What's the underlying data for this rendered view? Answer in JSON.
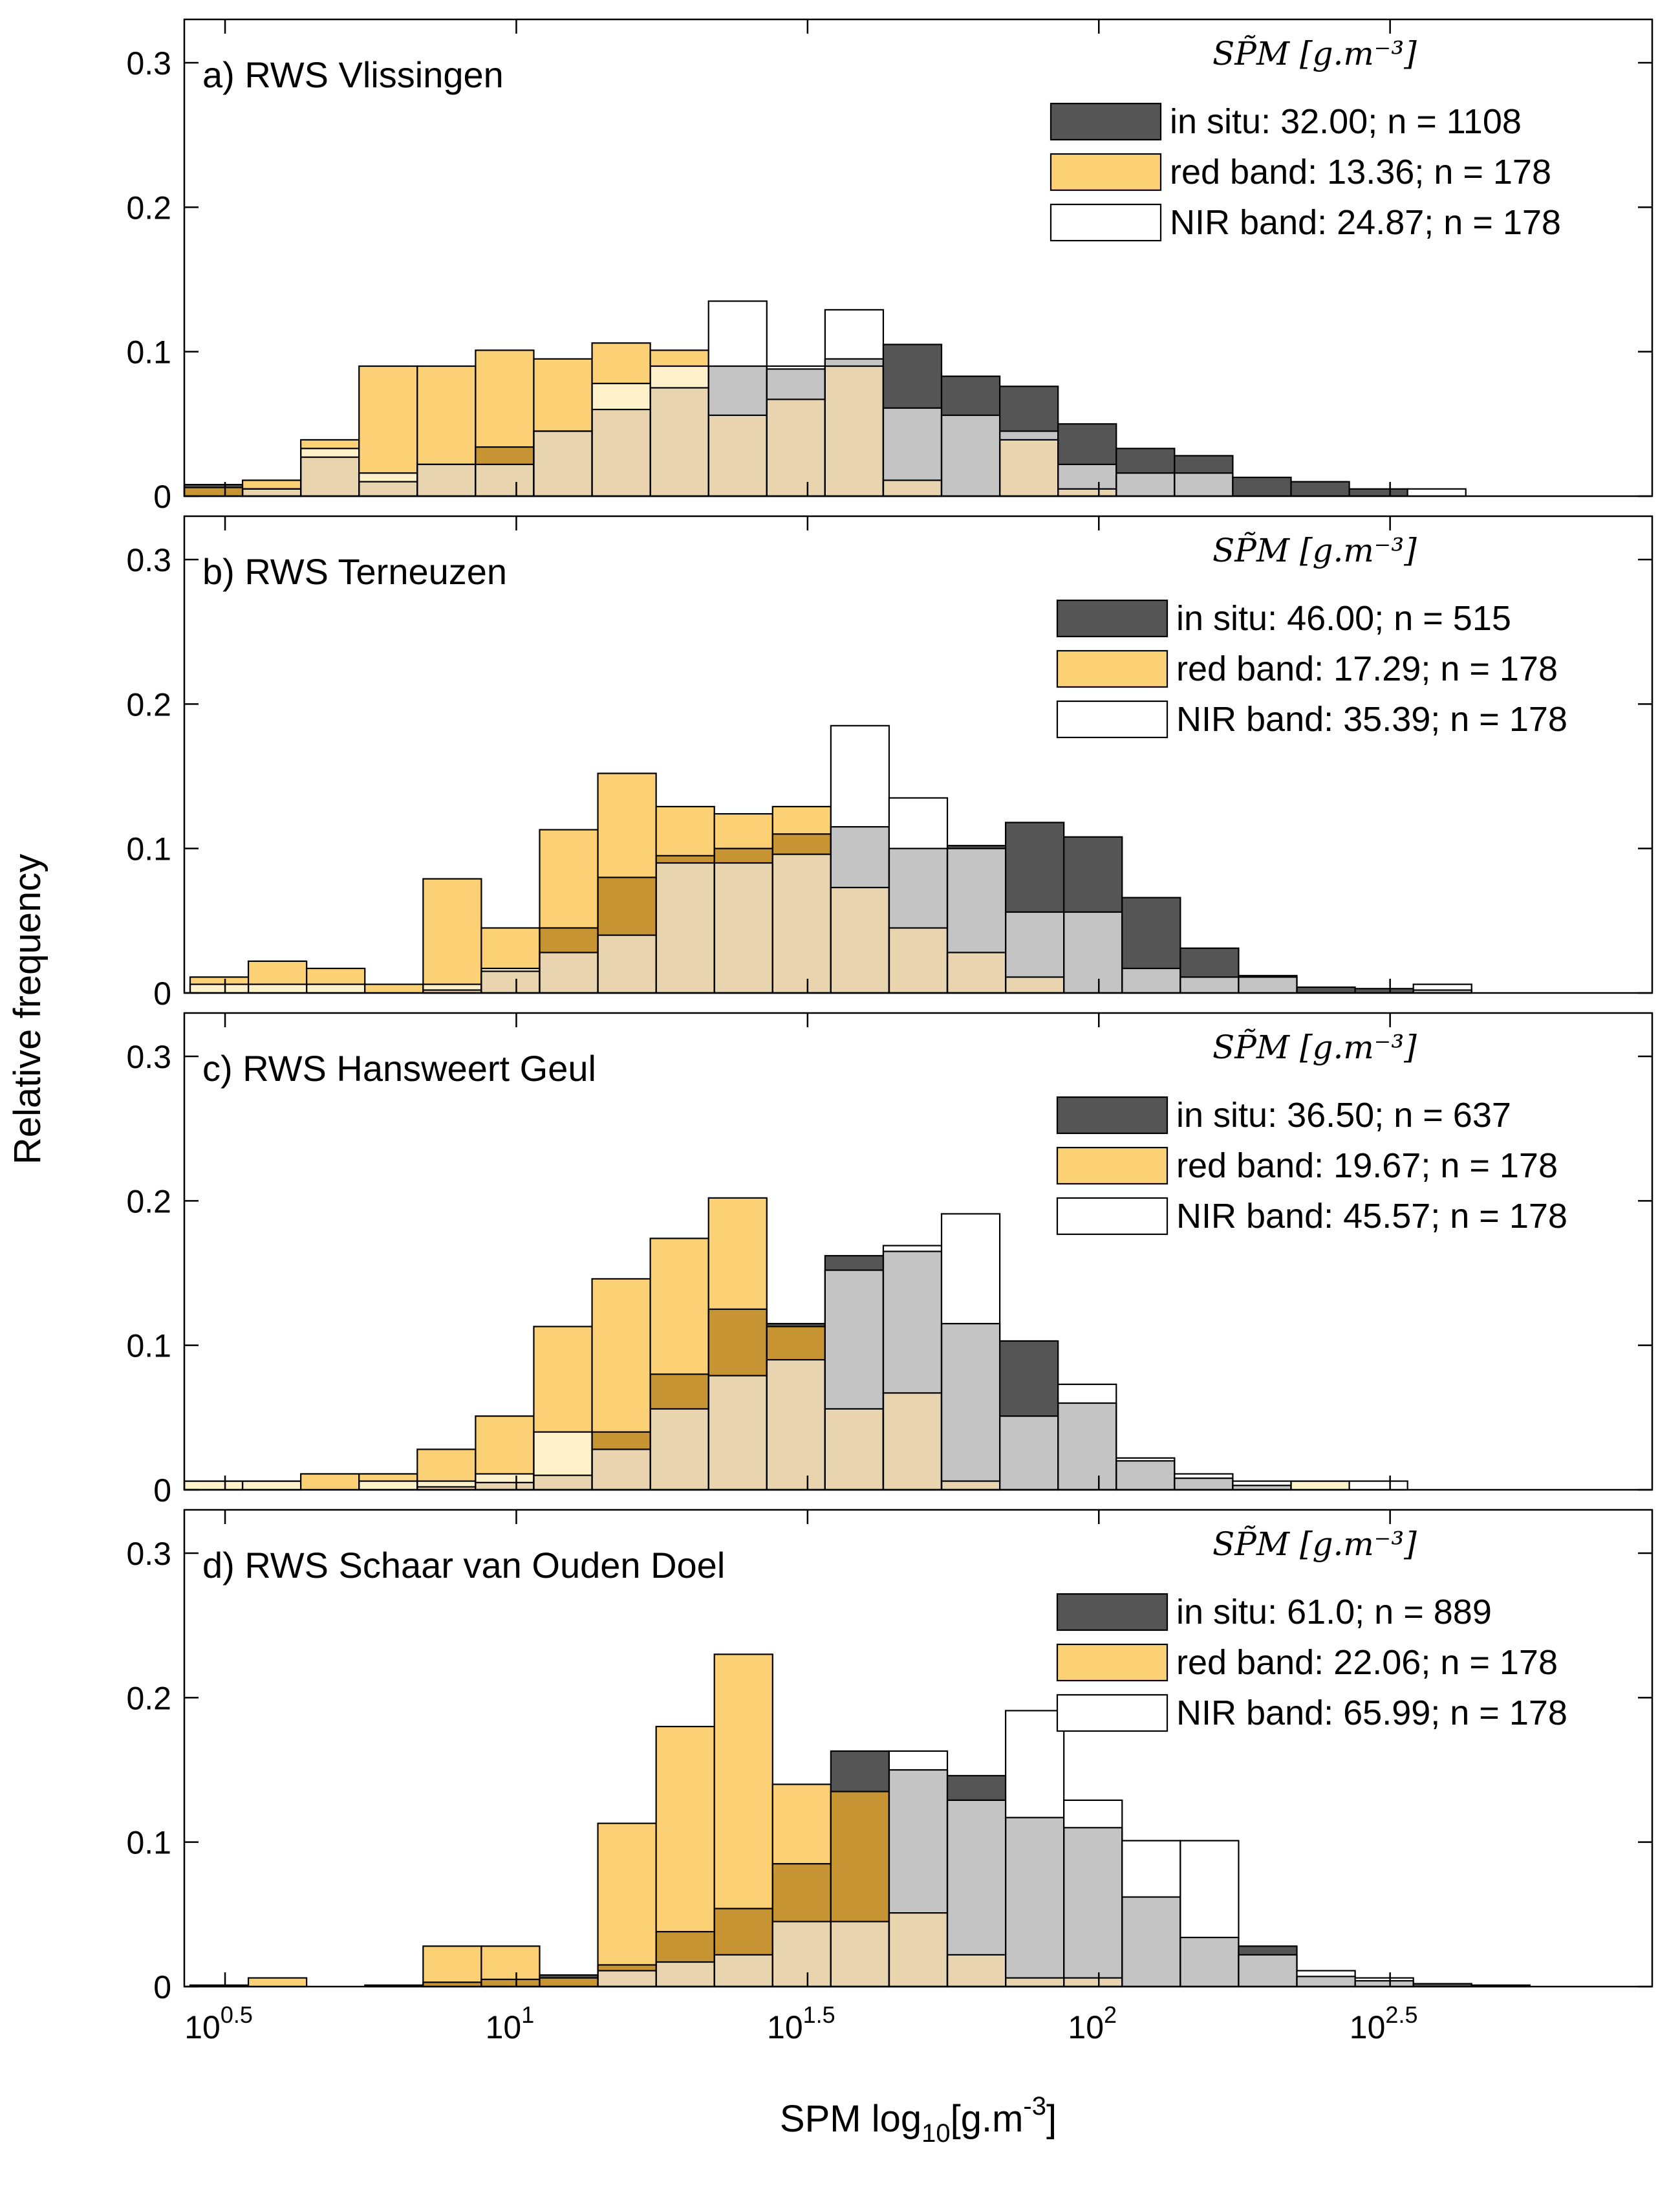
{
  "figure": {
    "ylabel": "Relative frequency",
    "xlabel_main": "SPM log",
    "xlabel_sub": "10",
    "xlabel_bracket": "[g.m",
    "xlabel_exp": "-3",
    "xlabel_close": "]",
    "x_tick_labels": [
      {
        "base": "10",
        "exp": "0.5",
        "value": 3.1623
      },
      {
        "base": "10",
        "exp": "1",
        "value": 10
      },
      {
        "base": "10",
        "exp": "1.5",
        "value": 31.623
      },
      {
        "base": "10",
        "exp": "2",
        "value": 100
      },
      {
        "base": "10",
        "exp": "2.5",
        "value": 316.23
      }
    ],
    "y_tick_labels": [
      "0",
      "0.1",
      "0.2",
      "0.3"
    ],
    "legend_title": "SP̃M [g.m⁻³]",
    "colors": {
      "insitu": "#555555",
      "red": "#FCD176",
      "nir": "#FFFFFF",
      "insitu_red_overlap": "#C79434",
      "red_nir_overlap": "#FFF1C9",
      "all_overlap": "#E8D5B0",
      "insitu_nir_overlap": "#C4C4C4",
      "edge": "#000000"
    }
  },
  "chart_data": [
    {
      "type": "bar",
      "title": "a) RWS Vlissingen",
      "xscale": "log10",
      "xlim_log10": [
        0.43,
        2.95
      ],
      "ylim": [
        0,
        0.33
      ],
      "legend": [
        {
          "label": "in situ: 32.00;  n = 1108",
          "series": "insitu"
        },
        {
          "label": "red band: 13.36; n = 178",
          "series": "red"
        },
        {
          "label": "NIR band: 24.87; n = 178",
          "series": "nir"
        }
      ],
      "bin_edges_log10": [
        0.43,
        0.53,
        0.63,
        0.73,
        0.83,
        0.93,
        1.03,
        1.13,
        1.23,
        1.33,
        1.43,
        1.53,
        1.63,
        1.73,
        1.83,
        1.93,
        2.03,
        2.13,
        2.23,
        2.33,
        2.43,
        2.53,
        2.63,
        2.73,
        2.83,
        2.93
      ],
      "series": [
        {
          "name": "in situ",
          "key": "insitu",
          "values": [
            0.008,
            0.005,
            0.027,
            0.01,
            0.022,
            0.034,
            0.045,
            0.06,
            0.075,
            0.09,
            0.088,
            0.095,
            0.105,
            0.083,
            0.076,
            0.05,
            0.033,
            0.028,
            0.013,
            0.01,
            0.005,
            0,
            0,
            0,
            0
          ]
        },
        {
          "name": "red band",
          "key": "red",
          "values": [
            0.006,
            0.011,
            0.039,
            0.09,
            0.09,
            0.101,
            0.095,
            0.106,
            0.101,
            0.056,
            0.067,
            0.09,
            0.011,
            0,
            0.039,
            0.005,
            0,
            0,
            0,
            0,
            0,
            0,
            0,
            0,
            0
          ]
        },
        {
          "name": "NIR band",
          "key": "nir",
          "values": [
            0,
            0.005,
            0.033,
            0.016,
            0.022,
            0.022,
            0.045,
            0.078,
            0.09,
            0.135,
            0.09,
            0.129,
            0.061,
            0.056,
            0.045,
            0.022,
            0.016,
            0.016,
            0,
            0,
            0,
            0.005,
            0,
            0,
            0
          ]
        }
      ]
    },
    {
      "type": "bar",
      "title": "b) RWS Terneuzen",
      "xscale": "log10",
      "xlim_log10": [
        0.43,
        2.95
      ],
      "ylim": [
        0,
        0.33
      ],
      "legend": [
        {
          "label": "in situ: 46.00; n = 515",
          "series": "insitu"
        },
        {
          "label": "red band: 17.29; n = 178",
          "series": "red"
        },
        {
          "label": "NIR band: 35.39; n = 178",
          "series": "nir"
        }
      ],
      "bin_edges_log10": [
        0.44,
        0.54,
        0.64,
        0.74,
        0.84,
        0.94,
        1.04,
        1.14,
        1.24,
        1.34,
        1.44,
        1.54,
        1.64,
        1.74,
        1.84,
        1.94,
        2.04,
        2.14,
        2.24,
        2.34,
        2.44,
        2.54,
        2.64,
        2.74,
        2.84,
        2.94
      ],
      "series": [
        {
          "name": "in situ",
          "key": "insitu",
          "values": [
            0,
            0,
            0,
            0,
            0.002,
            0.015,
            0.045,
            0.08,
            0.095,
            0.1,
            0.11,
            0.115,
            0.1,
            0.102,
            0.118,
            0.108,
            0.066,
            0.031,
            0.012,
            0.004,
            0.003,
            0.002,
            0,
            0,
            0
          ]
        },
        {
          "name": "red band",
          "key": "red",
          "values": [
            0.011,
            0.022,
            0.017,
            0.006,
            0.079,
            0.045,
            0.113,
            0.152,
            0.129,
            0.124,
            0.129,
            0.073,
            0.045,
            0.028,
            0.011,
            0,
            0,
            0,
            0,
            0,
            0,
            0,
            0,
            0,
            0
          ]
        },
        {
          "name": "NIR band",
          "key": "nir",
          "values": [
            0.006,
            0.006,
            0.006,
            0.0,
            0.006,
            0.017,
            0.028,
            0.04,
            0.09,
            0.09,
            0.096,
            0.185,
            0.135,
            0.1,
            0.056,
            0.056,
            0.017,
            0.011,
            0.011,
            0.0,
            0.0,
            0.006,
            0,
            0,
            0
          ]
        }
      ]
    },
    {
      "type": "bar",
      "title": "c) RWS Hansweert Geul",
      "xscale": "log10",
      "xlim_log10": [
        0.43,
        2.95
      ],
      "ylim": [
        0,
        0.33
      ],
      "legend": [
        {
          "label": "in situ: 36.50; n = 637",
          "series": "insitu"
        },
        {
          "label": "red band: 19.67; n = 178",
          "series": "red"
        },
        {
          "label": "NIR band: 45.57; n = 178",
          "series": "nir"
        }
      ],
      "bin_edges_log10": [
        0.43,
        0.53,
        0.63,
        0.73,
        0.83,
        0.93,
        1.03,
        1.13,
        1.23,
        1.33,
        1.43,
        1.53,
        1.63,
        1.73,
        1.83,
        1.93,
        2.03,
        2.13,
        2.23,
        2.33,
        2.43,
        2.53,
        2.63,
        2.73,
        2.83,
        2.93
      ],
      "series": [
        {
          "name": "in situ",
          "key": "insitu",
          "values": [
            0,
            0,
            0,
            0,
            0.002,
            0.005,
            0.01,
            0.04,
            0.08,
            0.125,
            0.115,
            0.162,
            0.165,
            0.115,
            0.103,
            0.06,
            0.02,
            0.008,
            0.003,
            0.0,
            0,
            0,
            0,
            0,
            0
          ]
        },
        {
          "name": "red band",
          "key": "red",
          "values": [
            0.006,
            0.006,
            0.011,
            0.011,
            0.028,
            0.051,
            0.113,
            0.146,
            0.174,
            0.202,
            0.113,
            0.056,
            0.067,
            0.006,
            0,
            0,
            0,
            0,
            0,
            0.006,
            0,
            0,
            0,
            0,
            0
          ]
        },
        {
          "name": "NIR band",
          "key": "nir",
          "values": [
            0.006,
            0.006,
            0.0,
            0.006,
            0.006,
            0.011,
            0.04,
            0.028,
            0.056,
            0.079,
            0.09,
            0.152,
            0.169,
            0.191,
            0.051,
            0.073,
            0.022,
            0.011,
            0.006,
            0.006,
            0.006,
            0,
            0,
            0,
            0
          ]
        }
      ]
    },
    {
      "type": "bar",
      "title": "d) RWS Schaar van Ouden Doel",
      "xscale": "log10",
      "xlim_log10": [
        0.43,
        2.95
      ],
      "ylim": [
        0,
        0.33
      ],
      "legend": [
        {
          "label": "in situ: 61.0; n = 889",
          "series": "insitu"
        },
        {
          "label": "red band: 22.06; n = 178",
          "series": "red"
        },
        {
          "label": "NIR band: 65.99; n = 178",
          "series": "nir"
        }
      ],
      "bin_edges_log10": [
        0.44,
        0.54,
        0.64,
        0.74,
        0.84,
        0.94,
        1.04,
        1.14,
        1.24,
        1.34,
        1.44,
        1.54,
        1.64,
        1.74,
        1.84,
        1.94,
        2.04,
        2.14,
        2.24,
        2.34,
        2.44,
        2.54,
        2.64,
        2.74,
        2.84,
        2.94
      ],
      "series": [
        {
          "name": "in situ",
          "key": "insitu",
          "values": [
            0.001,
            0,
            0,
            0.001,
            0.003,
            0.005,
            0.008,
            0.015,
            0.038,
            0.054,
            0.085,
            0.163,
            0.15,
            0.146,
            0.117,
            0.11,
            0.062,
            0.034,
            0.028,
            0.007,
            0.004,
            0.002,
            0.001,
            0,
            0
          ]
        },
        {
          "name": "red band",
          "key": "red",
          "values": [
            0,
            0.006,
            0,
            0,
            0.028,
            0.028,
            0.006,
            0.113,
            0.18,
            0.23,
            0.14,
            0.135,
            0.051,
            0.022,
            0.006,
            0.006,
            0,
            0,
            0,
            0,
            0,
            0,
            0,
            0,
            0
          ]
        },
        {
          "name": "NIR band",
          "key": "nir",
          "values": [
            0,
            0,
            0,
            0,
            0,
            0,
            0,
            0.011,
            0.017,
            0.022,
            0.045,
            0.045,
            0.163,
            0.129,
            0.191,
            0.129,
            0.101,
            0.101,
            0.022,
            0.011,
            0.006,
            0,
            0,
            0,
            0
          ]
        }
      ]
    }
  ]
}
